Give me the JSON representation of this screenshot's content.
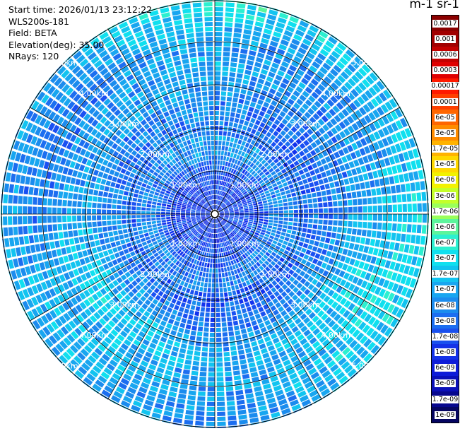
{
  "header": {
    "start_time": "Start time: 2026/01/13 23:12:22",
    "instrument": "WLS200s-181",
    "field": "Field: BETA",
    "elevation": "Elevation(deg): 35.00",
    "nrays": "NRays: 120"
  },
  "colorbar": {
    "units_label": "m-1 sr-1",
    "ticks": [
      "0.0017",
      "0.001",
      "0.0006",
      "0.0003",
      "0.00017",
      "0.0001",
      "6e-05",
      "3e-05",
      "1.7e-05",
      "1e-05",
      "6e-06",
      "3e-06",
      "1.7e-06",
      "1e-06",
      "6e-07",
      "3e-07",
      "1.7e-07",
      "1e-07",
      "6e-08",
      "3e-08",
      "1.7e-08",
      "1e-08",
      "6e-09",
      "3e-09",
      "1.7e-09",
      "1e-09"
    ],
    "colors": [
      "#8b0000",
      "#a10000",
      "#c40000",
      "#e00000",
      "#ff1a00",
      "#ff3f00",
      "#ff6600",
      "#ff8c00",
      "#ffb300",
      "#ffd800",
      "#f2f200",
      "#c4ff2a",
      "#9aff5a",
      "#5cf59c",
      "#2cf0d0",
      "#10e0ef",
      "#12c4f0",
      "#18a6f0",
      "#1b8cee",
      "#1c6ef0",
      "#1a50ee",
      "#1432e8",
      "#0e1cd8",
      "#0a10b8",
      "#07088e",
      "#050561"
    ]
  },
  "ring_labels": [
    "1.00km",
    "2.00km",
    "3.00km",
    "4.00km",
    "5.00km"
  ]
}
